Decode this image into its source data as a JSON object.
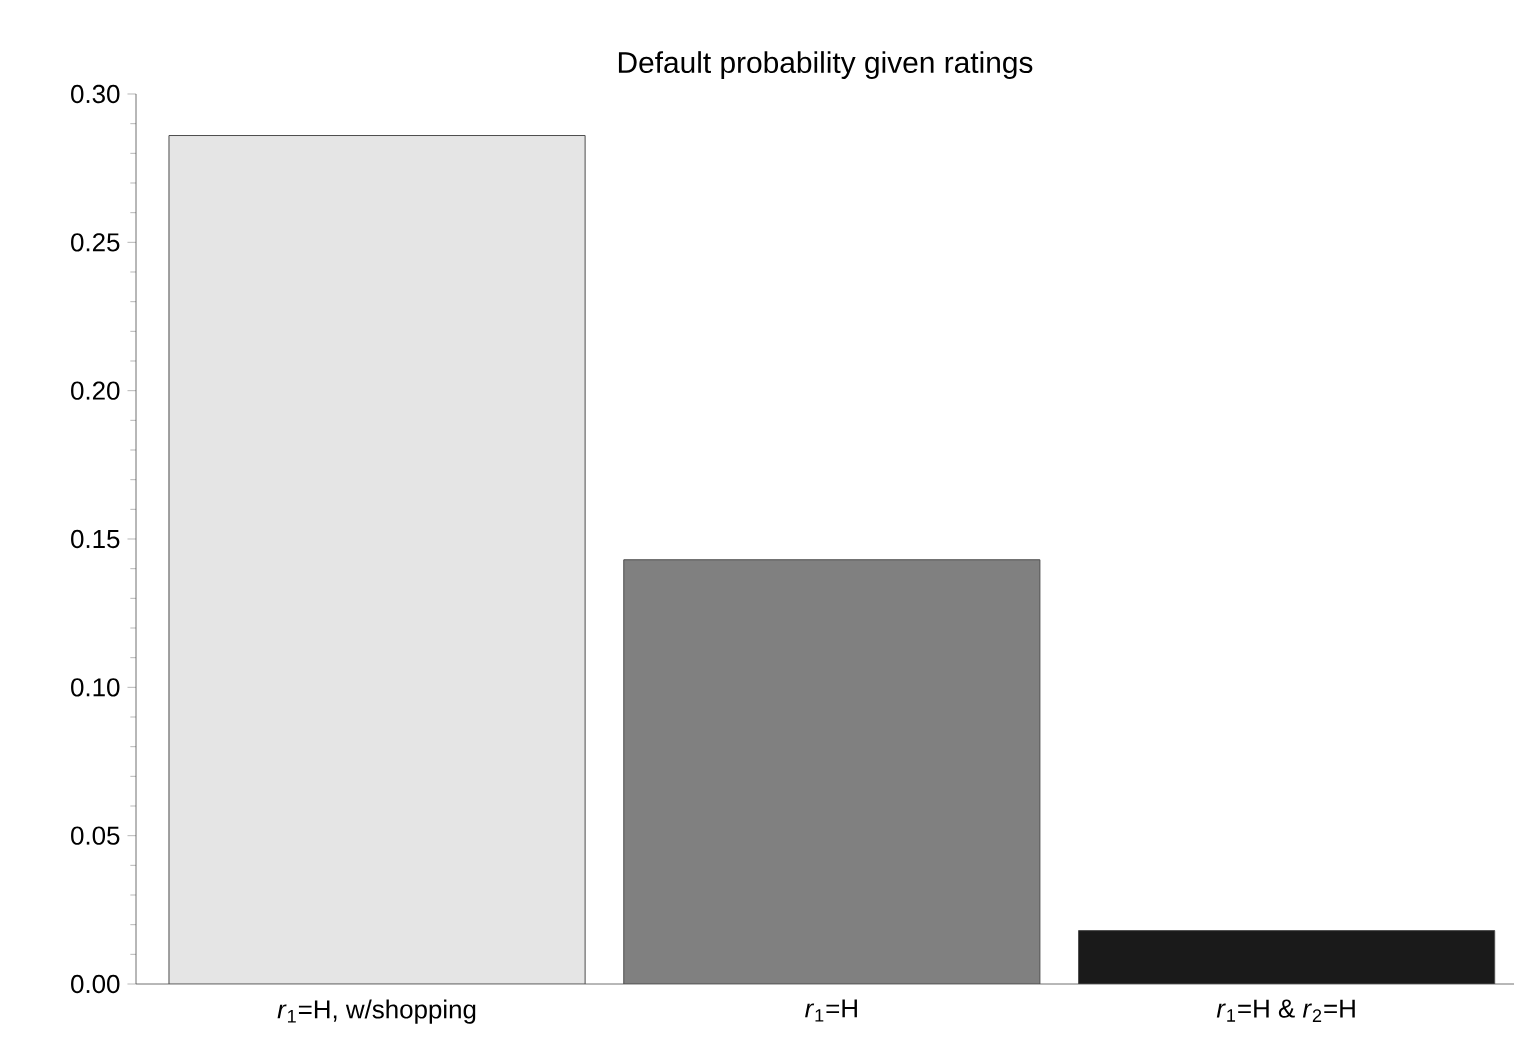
{
  "chart_data": {
    "type": "bar",
    "title": "Default probability given ratings",
    "categories": [
      "*r*$_{1}$=H, w/shopping",
      "*r*$_{1}$=H",
      "*r*$_{1}$=H & *r*$_{2}$=H"
    ],
    "values": [
      0.286,
      0.143,
      0.018
    ],
    "colors": [
      "#e5e5e5",
      "#808080",
      "#1a1a1a"
    ],
    "ylim": [
      0,
      0.3
    ],
    "yticks": [
      {
        "value": 0,
        "label": "0.00"
      },
      {
        "value": 0.05,
        "label": "0.05"
      },
      {
        "value": 0.1,
        "label": "0.10"
      },
      {
        "value": 0.15,
        "label": "0.15"
      },
      {
        "value": 0.2,
        "label": "0.20"
      },
      {
        "value": 0.25,
        "label": "0.25"
      },
      {
        "value": 0.3,
        "label": "0.30"
      }
    ],
    "grid": false
  }
}
